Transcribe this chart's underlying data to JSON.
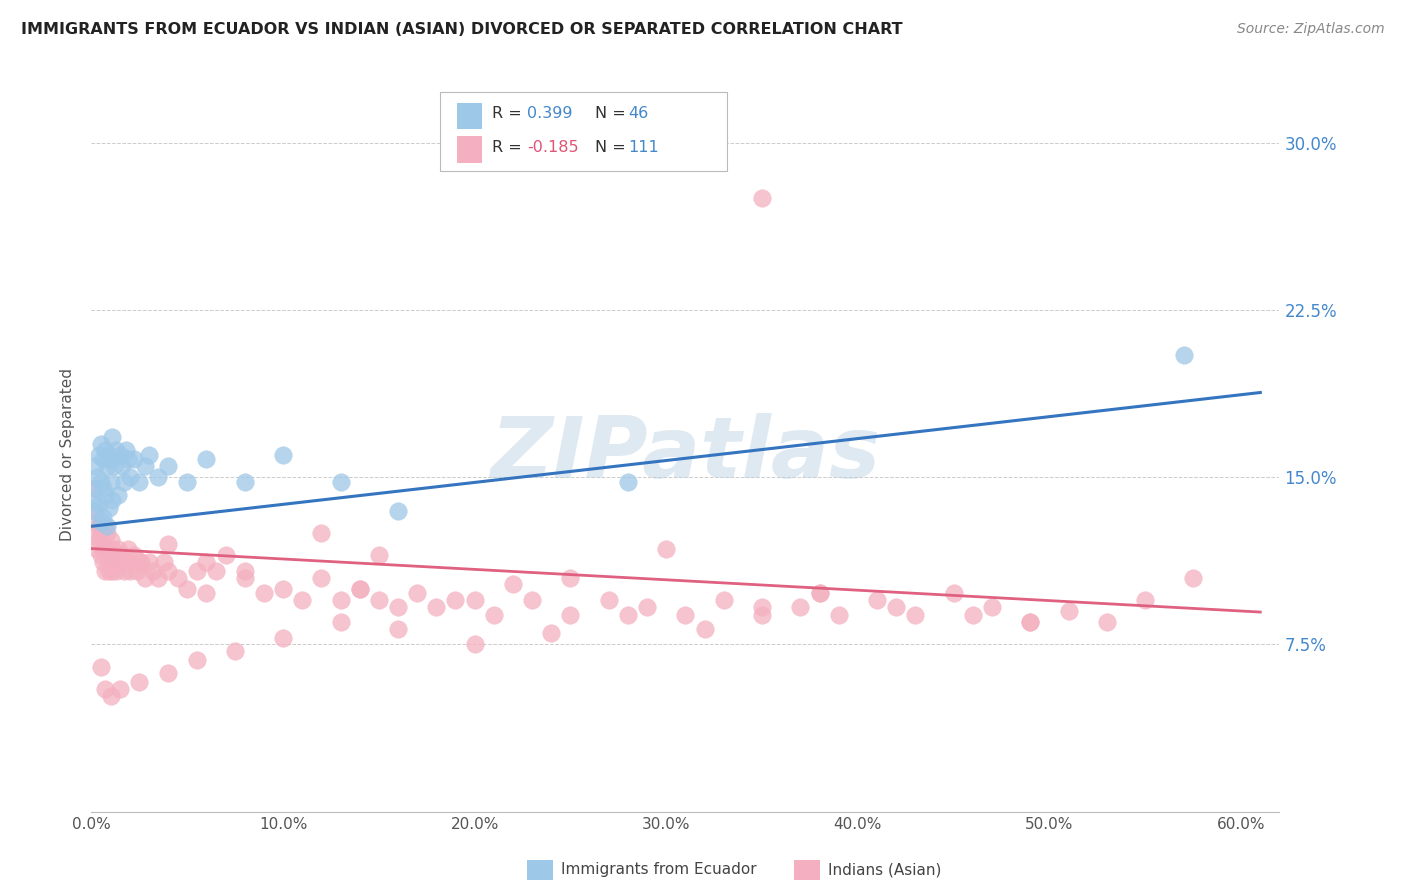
{
  "title": "IMMIGRANTS FROM ECUADOR VS INDIAN (ASIAN) DIVORCED OR SEPARATED CORRELATION CHART",
  "source": "Source: ZipAtlas.com",
  "ylabel": "Divorced or Separated",
  "yticks": [
    0.075,
    0.15,
    0.225,
    0.3
  ],
  "ytick_labels": [
    "7.5%",
    "15.0%",
    "22.5%",
    "30.0%"
  ],
  "xticks": [
    0.0,
    0.1,
    0.2,
    0.3,
    0.4,
    0.5,
    0.6
  ],
  "xtick_labels": [
    "0.0%",
    "10.0%",
    "20.0%",
    "30.0%",
    "40.0%",
    "50.0%",
    "60.0%"
  ],
  "xlim": [
    0.0,
    0.62
  ],
  "ylim": [
    0.0,
    0.32
  ],
  "watermark": "ZIPatlas",
  "blue_color": "#9ec8e8",
  "pink_color": "#f4b0c0",
  "blue_line_color": "#3575c0",
  "pink_line_color": "#e06080",
  "ecuador_x": [
    0.001,
    0.002,
    0.002,
    0.003,
    0.003,
    0.004,
    0.004,
    0.005,
    0.005,
    0.005,
    0.006,
    0.006,
    0.006,
    0.007,
    0.007,
    0.008,
    0.008,
    0.009,
    0.009,
    0.01,
    0.01,
    0.011,
    0.011,
    0.012,
    0.013,
    0.014,
    0.015,
    0.016,
    0.017,
    0.018,
    0.019,
    0.02,
    0.022,
    0.025,
    0.028,
    0.03,
    0.035,
    0.04,
    0.05,
    0.06,
    0.08,
    0.1,
    0.13,
    0.16,
    0.28,
    0.57
  ],
  "ecuador_y": [
    0.14,
    0.155,
    0.135,
    0.15,
    0.145,
    0.16,
    0.138,
    0.165,
    0.148,
    0.13,
    0.145,
    0.158,
    0.132,
    0.162,
    0.142,
    0.155,
    0.128,
    0.16,
    0.136,
    0.148,
    0.158,
    0.168,
    0.14,
    0.155,
    0.162,
    0.142,
    0.16,
    0.155,
    0.148,
    0.162,
    0.158,
    0.15,
    0.158,
    0.148,
    0.155,
    0.16,
    0.15,
    0.155,
    0.148,
    0.158,
    0.148,
    0.16,
    0.148,
    0.135,
    0.148,
    0.205
  ],
  "indian_x": [
    0.001,
    0.002,
    0.002,
    0.003,
    0.003,
    0.004,
    0.004,
    0.005,
    0.005,
    0.006,
    0.006,
    0.006,
    0.007,
    0.007,
    0.007,
    0.008,
    0.008,
    0.009,
    0.009,
    0.01,
    0.01,
    0.011,
    0.011,
    0.012,
    0.013,
    0.014,
    0.015,
    0.016,
    0.017,
    0.018,
    0.019,
    0.02,
    0.022,
    0.024,
    0.026,
    0.028,
    0.03,
    0.032,
    0.035,
    0.038,
    0.04,
    0.045,
    0.05,
    0.055,
    0.06,
    0.065,
    0.07,
    0.08,
    0.09,
    0.1,
    0.11,
    0.12,
    0.13,
    0.14,
    0.15,
    0.16,
    0.17,
    0.18,
    0.2,
    0.21,
    0.22,
    0.23,
    0.25,
    0.27,
    0.29,
    0.31,
    0.33,
    0.35,
    0.37,
    0.39,
    0.41,
    0.43,
    0.45,
    0.47,
    0.49,
    0.51,
    0.53,
    0.55,
    0.575,
    0.35,
    0.38,
    0.15,
    0.06,
    0.12,
    0.08,
    0.04,
    0.025,
    0.3,
    0.25,
    0.19,
    0.14,
    0.49,
    0.42,
    0.46,
    0.38,
    0.32,
    0.28,
    0.24,
    0.2,
    0.16,
    0.13,
    0.1,
    0.075,
    0.055,
    0.04,
    0.025,
    0.015,
    0.01,
    0.007,
    0.005,
    0.35
  ],
  "indian_y": [
    0.145,
    0.135,
    0.125,
    0.13,
    0.118,
    0.128,
    0.122,
    0.115,
    0.125,
    0.118,
    0.112,
    0.128,
    0.108,
    0.118,
    0.128,
    0.115,
    0.125,
    0.108,
    0.118,
    0.115,
    0.122,
    0.108,
    0.118,
    0.115,
    0.108,
    0.118,
    0.112,
    0.115,
    0.108,
    0.112,
    0.118,
    0.108,
    0.115,
    0.108,
    0.112,
    0.105,
    0.112,
    0.108,
    0.105,
    0.112,
    0.108,
    0.105,
    0.1,
    0.108,
    0.098,
    0.108,
    0.115,
    0.105,
    0.098,
    0.1,
    0.095,
    0.105,
    0.095,
    0.1,
    0.095,
    0.092,
    0.098,
    0.092,
    0.095,
    0.088,
    0.102,
    0.095,
    0.088,
    0.095,
    0.092,
    0.088,
    0.095,
    0.088,
    0.092,
    0.088,
    0.095,
    0.088,
    0.098,
    0.092,
    0.085,
    0.09,
    0.085,
    0.095,
    0.105,
    0.092,
    0.098,
    0.115,
    0.112,
    0.125,
    0.108,
    0.12,
    0.112,
    0.118,
    0.105,
    0.095,
    0.1,
    0.085,
    0.092,
    0.088,
    0.098,
    0.082,
    0.088,
    0.08,
    0.075,
    0.082,
    0.085,
    0.078,
    0.072,
    0.068,
    0.062,
    0.058,
    0.055,
    0.052,
    0.055,
    0.065,
    0.275
  ]
}
